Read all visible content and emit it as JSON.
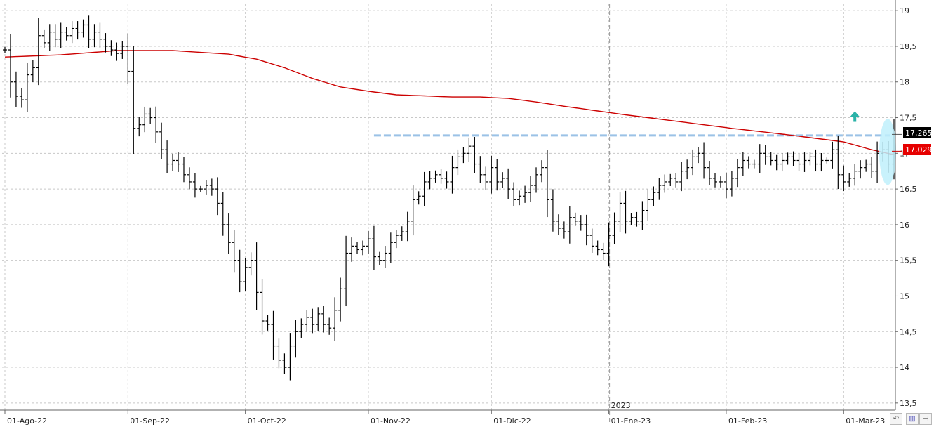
{
  "chart_data": {
    "type": "ohlc",
    "x_tick_labels": [
      "01-Ago-22",
      "01-Sep-22",
      "01-Oct-22",
      "01-Nov-22",
      "01-Dic-22",
      "2023",
      "01-Ene-23",
      "01-Feb-23",
      "01-Mar-23"
    ],
    "y_tick_labels": [
      "13,5",
      "14",
      "14,5",
      "15",
      "15,5",
      "16",
      "16,5",
      "17",
      "17,5",
      "18",
      "18,5",
      "19"
    ],
    "y_ticks": [
      13.5,
      14,
      14.5,
      15,
      15.5,
      16,
      16.5,
      17,
      17.5,
      18,
      18.5,
      19
    ],
    "ylim": [
      13.4,
      19.1
    ],
    "x_tick_index": [
      0,
      22,
      43,
      65,
      87,
      108,
      129,
      150
    ],
    "year_label_index": 108,
    "close_series": [
      18.45,
      18.0,
      17.8,
      17.75,
      18.1,
      18.2,
      18.65,
      18.55,
      18.7,
      18.6,
      18.7,
      18.65,
      18.75,
      18.7,
      18.8,
      18.6,
      18.7,
      18.6,
      18.5,
      18.45,
      18.4,
      18.5,
      18.15,
      17.35,
      17.4,
      17.55,
      17.5,
      17.3,
      17.05,
      16.85,
      16.9,
      16.85,
      16.7,
      16.6,
      16.5,
      16.5,
      16.55,
      16.5,
      16.3,
      16.0,
      15.75,
      15.5,
      15.2,
      15.4,
      15.5,
      15.05,
      14.65,
      14.6,
      14.3,
      14.1,
      14.0,
      14.3,
      14.5,
      14.6,
      14.7,
      14.6,
      14.75,
      14.6,
      14.55,
      14.8,
      15.1,
      15.6,
      15.7,
      15.65,
      15.7,
      15.8,
      15.55,
      15.5,
      15.6,
      15.75,
      15.85,
      15.9,
      16.05,
      16.35,
      16.4,
      16.6,
      16.65,
      16.7,
      16.65,
      16.6,
      16.8,
      16.95,
      17.0,
      17.1,
      16.85,
      16.7,
      16.6,
      16.8,
      16.6,
      16.65,
      16.5,
      16.35,
      16.4,
      16.45,
      16.55,
      16.7,
      16.8,
      16.35,
      16.05,
      15.95,
      15.9,
      16.1,
      16.05,
      16.0,
      15.85,
      15.7,
      15.65,
      15.6,
      15.85,
      16.05,
      16.3,
      16.05,
      16.1,
      16.05,
      16.2,
      16.35,
      16.45,
      16.55,
      16.6,
      16.65,
      16.6,
      16.75,
      16.8,
      16.95,
      17.0,
      16.8,
      16.65,
      16.6,
      16.6,
      16.5,
      16.65,
      16.8,
      16.9,
      16.85,
      16.85,
      17.0,
      16.95,
      16.9,
      16.85,
      16.9,
      16.95,
      16.9,
      16.85,
      16.9,
      16.95,
      16.85,
      16.9,
      16.9,
      17.05,
      16.7,
      16.6,
      16.65,
      16.75,
      16.8,
      16.85,
      16.75,
      17.0,
      17.05,
      16.85,
      17.265
    ],
    "moving_average": {
      "color": "#cc0000",
      "anchor_index": [
        0,
        10,
        20,
        30,
        40,
        45,
        50,
        55,
        60,
        65,
        70,
        80,
        85,
        90,
        95,
        100,
        110,
        120,
        130,
        140,
        150,
        155,
        159
      ],
      "values": [
        18.35,
        18.38,
        18.44,
        18.44,
        18.39,
        18.32,
        18.2,
        18.05,
        17.93,
        17.87,
        17.82,
        17.79,
        17.79,
        17.77,
        17.72,
        17.66,
        17.55,
        17.45,
        17.35,
        17.26,
        17.16,
        17.05,
        16.98
      ]
    },
    "resistance_line": {
      "value": 17.25,
      "start_index": 66,
      "color": "#9bc2e6"
    },
    "last_price": "17,265",
    "last_price_value": 17.265,
    "ma_value": "17,029",
    "ma_value_num": 17.029,
    "signal_arrow": {
      "index": 152,
      "value": 17.5,
      "color": "#2bb3a8"
    },
    "highlight_ellipse": {
      "index": 158,
      "value": 17.02,
      "color": "#bff0fb"
    },
    "colors": {
      "bars": "#000000",
      "grid": "#c8c8c8",
      "last_badge": "#000000",
      "ma_badge": "#e60000"
    }
  },
  "corner_icons": [
    "rotate-icon",
    "chart-mode-icon",
    "pin-icon"
  ]
}
